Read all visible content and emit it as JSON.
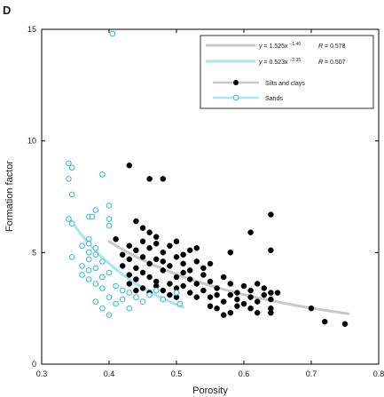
{
  "panel_label": "D",
  "colors": {
    "sands": "#33bcd6",
    "sands_fit": "#a6e6ee",
    "silts_clays": "#000000",
    "silts_clays_fit": "#c8c8c8",
    "axes": "#000000"
  },
  "chart_data": {
    "type": "scatter",
    "xlabel": "Porosity",
    "ylabel": "Formation factor",
    "xlim": [
      0.3,
      0.8
    ],
    "ylim": [
      0,
      15
    ],
    "x_ticks": [
      0.3,
      0.4,
      0.5,
      0.6,
      0.7,
      0.8
    ],
    "x_tick_labels": [
      "0.3",
      "0.4",
      "0.5",
      "0.6",
      "0.7",
      "0.8"
    ],
    "y_ticks": [
      0,
      5,
      10,
      15
    ],
    "y_tick_labels": [
      "0",
      "5",
      "10",
      "15"
    ],
    "grid": false,
    "legend_position": "top-right",
    "fits": [
      {
        "equation": "y = 1.525x^-1.40",
        "equation_parts": {
          "lhs": "y",
          "coef": "= 1.525x",
          "exp": "−1.40"
        },
        "r_label": "R = 0.578",
        "r_parts": {
          "r": "R",
          "rest": " = 0.578"
        },
        "color": "#c8c8c8",
        "a": 1.525,
        "b": -1.4,
        "x_range": [
          0.4,
          0.755
        ]
      },
      {
        "equation": "y = 0.523x^-2.35",
        "equation_parts": {
          "lhs": "y",
          "coef": "= 0.523x",
          "exp": "−2.35"
        },
        "r_label": "R = 0.507",
        "r_parts": {
          "r": "R",
          "rest": " = 0.507"
        },
        "color": "#a6e6ee",
        "a": 0.523,
        "b": -2.35,
        "x_range": [
          0.34,
          0.51
        ]
      }
    ],
    "series": [
      {
        "name": "Silts and clays",
        "marker": "filled-circle",
        "color": "#000000",
        "points": [
          [
            0.43,
            8.9
          ],
          [
            0.46,
            8.3
          ],
          [
            0.48,
            8.3
          ],
          [
            0.64,
            6.7
          ],
          [
            0.61,
            5.9
          ],
          [
            0.53,
            5.2
          ],
          [
            0.44,
            6.4
          ],
          [
            0.45,
            6.1
          ],
          [
            0.46,
            5.9
          ],
          [
            0.47,
            5.7
          ],
          [
            0.41,
            5.6
          ],
          [
            0.43,
            5.3
          ],
          [
            0.44,
            5.1
          ],
          [
            0.45,
            5.5
          ],
          [
            0.46,
            5.2
          ],
          [
            0.47,
            5.4
          ],
          [
            0.48,
            5.0
          ],
          [
            0.49,
            5.3
          ],
          [
            0.5,
            5.5
          ],
          [
            0.51,
            4.9
          ],
          [
            0.52,
            5.1
          ],
          [
            0.58,
            5.0
          ],
          [
            0.64,
            5.1
          ],
          [
            0.42,
            4.4
          ],
          [
            0.42,
            4.9
          ],
          [
            0.43,
            4.7
          ],
          [
            0.44,
            4.3
          ],
          [
            0.45,
            4.8
          ],
          [
            0.46,
            4.5
          ],
          [
            0.47,
            4.7
          ],
          [
            0.48,
            4.6
          ],
          [
            0.49,
            4.4
          ],
          [
            0.5,
            4.8
          ],
          [
            0.51,
            4.5
          ],
          [
            0.52,
            4.2
          ],
          [
            0.53,
            4.6
          ],
          [
            0.54,
            4.3
          ],
          [
            0.55,
            4.5
          ],
          [
            0.43,
            4.0
          ],
          [
            0.44,
            3.8
          ],
          [
            0.45,
            4.1
          ],
          [
            0.46,
            3.9
          ],
          [
            0.47,
            3.7
          ],
          [
            0.48,
            4.2
          ],
          [
            0.49,
            3.6
          ],
          [
            0.5,
            3.9
          ],
          [
            0.51,
            3.5
          ],
          [
            0.52,
            3.8
          ],
          [
            0.53,
            3.6
          ],
          [
            0.54,
            4.0
          ],
          [
            0.55,
            3.7
          ],
          [
            0.56,
            3.4
          ],
          [
            0.57,
            3.9
          ],
          [
            0.58,
            3.6
          ],
          [
            0.59,
            3.2
          ],
          [
            0.6,
            3.5
          ],
          [
            0.61,
            3.3
          ],
          [
            0.62,
            3.6
          ],
          [
            0.63,
            3.4
          ],
          [
            0.64,
            3.2
          ],
          [
            0.45,
            3.4
          ],
          [
            0.46,
            3.2
          ],
          [
            0.47,
            3.5
          ],
          [
            0.48,
            3.3
          ],
          [
            0.49,
            3.1
          ],
          [
            0.5,
            3.4
          ],
          [
            0.52,
            3.2
          ],
          [
            0.53,
            3.0
          ],
          [
            0.54,
            3.3
          ],
          [
            0.55,
            3.0
          ],
          [
            0.56,
            3.1
          ],
          [
            0.57,
            2.8
          ],
          [
            0.58,
            3.1
          ],
          [
            0.59,
            2.9
          ],
          [
            0.6,
            2.7
          ],
          [
            0.61,
            3.0
          ],
          [
            0.62,
            2.8
          ],
          [
            0.63,
            3.1
          ],
          [
            0.64,
            2.9
          ],
          [
            0.65,
            3.2
          ],
          [
            0.55,
            2.6
          ],
          [
            0.56,
            2.5
          ],
          [
            0.58,
            2.3
          ],
          [
            0.59,
            2.6
          ],
          [
            0.61,
            2.5
          ],
          [
            0.62,
            2.3
          ],
          [
            0.64,
            2.5
          ],
          [
            0.64,
            2.3
          ],
          [
            0.7,
            2.5
          ],
          [
            0.72,
            1.9
          ],
          [
            0.75,
            1.8
          ],
          [
            0.43,
            3.6
          ],
          [
            0.44,
            3.3
          ],
          [
            0.5,
            3.0
          ],
          [
            0.51,
            4.1
          ],
          [
            0.57,
            2.2
          ]
        ]
      },
      {
        "name": "Sands",
        "marker": "open-circle",
        "color": "#33bcd6",
        "points": [
          [
            0.405,
            14.8
          ],
          [
            0.34,
            9.0
          ],
          [
            0.345,
            8.8
          ],
          [
            0.34,
            8.3
          ],
          [
            0.39,
            8.5
          ],
          [
            0.345,
            7.6
          ],
          [
            0.38,
            6.9
          ],
          [
            0.4,
            7.1
          ],
          [
            0.37,
            6.6
          ],
          [
            0.375,
            6.6
          ],
          [
            0.34,
            6.5
          ],
          [
            0.345,
            6.3
          ],
          [
            0.4,
            6.5
          ],
          [
            0.4,
            6.2
          ],
          [
            0.37,
            5.6
          ],
          [
            0.36,
            5.3
          ],
          [
            0.37,
            5.4
          ],
          [
            0.38,
            5.2
          ],
          [
            0.345,
            4.8
          ],
          [
            0.37,
            5.0
          ],
          [
            0.38,
            4.9
          ],
          [
            0.39,
            4.6
          ],
          [
            0.37,
            4.7
          ],
          [
            0.36,
            4.4
          ],
          [
            0.37,
            4.2
          ],
          [
            0.38,
            4.3
          ],
          [
            0.36,
            4.0
          ],
          [
            0.37,
            3.8
          ],
          [
            0.39,
            3.9
          ],
          [
            0.4,
            4.1
          ],
          [
            0.38,
            3.6
          ],
          [
            0.39,
            3.4
          ],
          [
            0.41,
            3.5
          ],
          [
            0.42,
            3.3
          ],
          [
            0.4,
            3.0
          ],
          [
            0.42,
            2.9
          ],
          [
            0.43,
            3.2
          ],
          [
            0.44,
            3.0
          ],
          [
            0.45,
            2.8
          ],
          [
            0.46,
            3.1
          ],
          [
            0.47,
            3.3
          ],
          [
            0.48,
            2.9
          ],
          [
            0.5,
            3.2
          ],
          [
            0.38,
            2.8
          ],
          [
            0.39,
            2.5
          ],
          [
            0.4,
            2.2
          ],
          [
            0.41,
            2.7
          ],
          [
            0.43,
            2.5
          ],
          [
            0.505,
            2.7
          ]
        ]
      }
    ]
  }
}
